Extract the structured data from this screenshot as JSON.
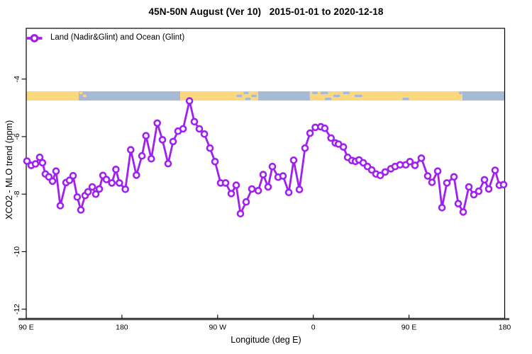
{
  "chart_data": {
    "type": "line",
    "title": "45N-50N August (Ver 10)   2015-01-01 to 2020-12-18",
    "xlabel": "Longitude (deg E)",
    "ylabel": "XCO2 - MLO trend (ppm)",
    "legend": {
      "label": "Land (Nadir&Glint) and Ocean (Glint)",
      "marker": "open-circle-on-line",
      "position": "top-left-inside"
    },
    "colors": {
      "series": "#A020F0",
      "land_band": "#FBD87E",
      "ocean_band": "#A6BAD8",
      "axis_line": "#4D4D4D",
      "box_border": "#000000"
    },
    "grid": "off",
    "x_axis": {
      "range_deg_continuous": [
        90,
        540
      ],
      "ticks": [
        {
          "pos": 90,
          "label": "90 E"
        },
        {
          "pos": 180,
          "label": "180"
        },
        {
          "pos": 270,
          "label": "90 W"
        },
        {
          "pos": 360,
          "label": "0"
        },
        {
          "pos": 450,
          "label": "90 E"
        },
        {
          "pos": 540,
          "label": "180"
        }
      ]
    },
    "y_axis": {
      "range": [
        -12.3,
        -2.2
      ],
      "ticks": [
        -4,
        -6,
        -8,
        -10,
        -12
      ],
      "tick_labels_rotated": true
    },
    "land_ocean_strip": {
      "description": "thin land/ocean map band across top of plot",
      "y_range_ppm": [
        -4.43,
        -4.75
      ],
      "segments": [
        {
          "from": 90,
          "to": 139.3,
          "type": "land"
        },
        {
          "from": 139.3,
          "to": 234.8,
          "type": "ocean"
        },
        {
          "from": 234.8,
          "to": 308.2,
          "type": "land"
        },
        {
          "from": 308.2,
          "to": 356.8,
          "type": "ocean"
        },
        {
          "from": 356.8,
          "to": 500.3,
          "type": "land"
        },
        {
          "from": 500.3,
          "to": 540,
          "type": "ocean"
        }
      ],
      "speckles": [
        {
          "from": 140,
          "to": 143,
          "pos": "top",
          "type": "land"
        },
        {
          "from": 143.5,
          "to": 146.5,
          "pos": "mid",
          "type": "land"
        },
        {
          "from": 288,
          "to": 293,
          "pos": "mid",
          "type": "ocean"
        },
        {
          "from": 294.5,
          "to": 299,
          "pos": "top",
          "type": "ocean"
        },
        {
          "from": 296,
          "to": 301,
          "pos": "bottom",
          "type": "ocean"
        },
        {
          "from": 302,
          "to": 306.5,
          "pos": "mid",
          "type": "ocean"
        },
        {
          "from": 359,
          "to": 364,
          "pos": "top",
          "type": "ocean"
        },
        {
          "from": 367,
          "to": 374,
          "pos": "top",
          "type": "ocean"
        },
        {
          "from": 371,
          "to": 377,
          "pos": "bottom",
          "type": "ocean"
        },
        {
          "from": 379,
          "to": 385,
          "pos": "mid",
          "type": "ocean"
        },
        {
          "from": 388,
          "to": 394,
          "pos": "top",
          "type": "ocean"
        },
        {
          "from": 399,
          "to": 406,
          "pos": "mid",
          "type": "ocean"
        },
        {
          "from": 444,
          "to": 450,
          "pos": "bottom",
          "type": "ocean"
        },
        {
          "from": 497,
          "to": 500,
          "pos": "top",
          "type": "ocean"
        }
      ]
    },
    "series": [
      {
        "name": "Land (Nadir&Glint) and Ocean (Glint)",
        "color": "#A020F0",
        "marker": "open-circle",
        "points": [
          [
            90.7,
            -6.85
          ],
          [
            94.7,
            -7.0
          ],
          [
            98.7,
            -6.95
          ],
          [
            102.7,
            -6.72
          ],
          [
            105.3,
            -6.91
          ],
          [
            108.0,
            -7.3
          ],
          [
            111.3,
            -7.4
          ],
          [
            114.7,
            -7.55
          ],
          [
            118.0,
            -7.2
          ],
          [
            122.0,
            -8.4
          ],
          [
            127.4,
            -7.6
          ],
          [
            130.7,
            -7.52
          ],
          [
            134.0,
            -7.36
          ],
          [
            138.0,
            -8.1
          ],
          [
            141.4,
            -8.55
          ],
          [
            145.4,
            -8.05
          ],
          [
            148.1,
            -7.92
          ],
          [
            152.1,
            -7.75
          ],
          [
            155.4,
            -8.0
          ],
          [
            158.7,
            -7.82
          ],
          [
            162.1,
            -7.35
          ],
          [
            165.4,
            -7.49
          ],
          [
            170.5,
            -7.61
          ],
          [
            174.3,
            -7.14
          ],
          [
            177.6,
            -7.61
          ],
          [
            183.2,
            -7.83
          ],
          [
            188.3,
            -6.46
          ],
          [
            193.6,
            -7.34
          ],
          [
            198.8,
            -6.67
          ],
          [
            202.6,
            -5.97
          ],
          [
            207.6,
            -6.77
          ],
          [
            213.2,
            -5.53
          ],
          [
            218.1,
            -6.11
          ],
          [
            223.4,
            -6.94
          ],
          [
            228.1,
            -6.17
          ],
          [
            232.8,
            -5.81
          ],
          [
            237.5,
            -5.73
          ],
          [
            243.5,
            -4.76
          ],
          [
            248.1,
            -5.48
          ],
          [
            252.8,
            -5.73
          ],
          [
            257.5,
            -5.91
          ],
          [
            262.8,
            -6.4
          ],
          [
            267.5,
            -6.87
          ],
          [
            272.8,
            -7.61
          ],
          [
            277.5,
            -7.61
          ],
          [
            282.8,
            -7.98
          ],
          [
            287.5,
            -7.69
          ],
          [
            291.5,
            -8.68
          ],
          [
            296.8,
            -8.27
          ],
          [
            302.2,
            -7.82
          ],
          [
            308.2,
            -7.88
          ],
          [
            312.8,
            -7.32
          ],
          [
            317.5,
            -7.75
          ],
          [
            321.5,
            -7.04
          ],
          [
            326.9,
            -7.41
          ],
          [
            331.5,
            -7.37
          ],
          [
            336.9,
            -7.94
          ],
          [
            341.5,
            -6.82
          ],
          [
            346.9,
            -7.84
          ],
          [
            352.2,
            -6.4
          ],
          [
            356.9,
            -5.88
          ],
          [
            361.9,
            -5.68
          ],
          [
            367.1,
            -5.66
          ],
          [
            370.8,
            -5.71
          ],
          [
            376.7,
            -6.05
          ],
          [
            380.7,
            -6.22
          ],
          [
            383.7,
            -6.26
          ],
          [
            388.3,
            -6.36
          ],
          [
            392.3,
            -6.72
          ],
          [
            396.3,
            -6.83
          ],
          [
            399.6,
            -6.86
          ],
          [
            403.0,
            -6.81
          ],
          [
            407.0,
            -6.91
          ],
          [
            411.0,
            -7.04
          ],
          [
            415.0,
            -7.16
          ],
          [
            419.0,
            -7.3
          ],
          [
            423.0,
            -7.35
          ],
          [
            427.6,
            -7.23
          ],
          [
            432.9,
            -7.12
          ],
          [
            436.9,
            -7.04
          ],
          [
            441.6,
            -6.98
          ],
          [
            446.9,
            -6.98
          ],
          [
            450.9,
            -6.87
          ],
          [
            455.6,
            -7.0
          ],
          [
            461.6,
            -6.75
          ],
          [
            467.6,
            -7.37
          ],
          [
            471.6,
            -7.59
          ],
          [
            477.0,
            -7.2
          ],
          [
            481.0,
            -8.47
          ],
          [
            485.6,
            -7.61
          ],
          [
            492.3,
            -7.4
          ],
          [
            496.3,
            -8.33
          ],
          [
            501.0,
            -8.62
          ],
          [
            506.3,
            -7.75
          ],
          [
            511.0,
            -8.02
          ],
          [
            515.6,
            -7.9
          ],
          [
            521.0,
            -7.5
          ],
          [
            525.0,
            -7.82
          ],
          [
            531.0,
            -7.17
          ],
          [
            535.0,
            -7.69
          ],
          [
            539.0,
            -7.67
          ]
        ]
      }
    ]
  }
}
